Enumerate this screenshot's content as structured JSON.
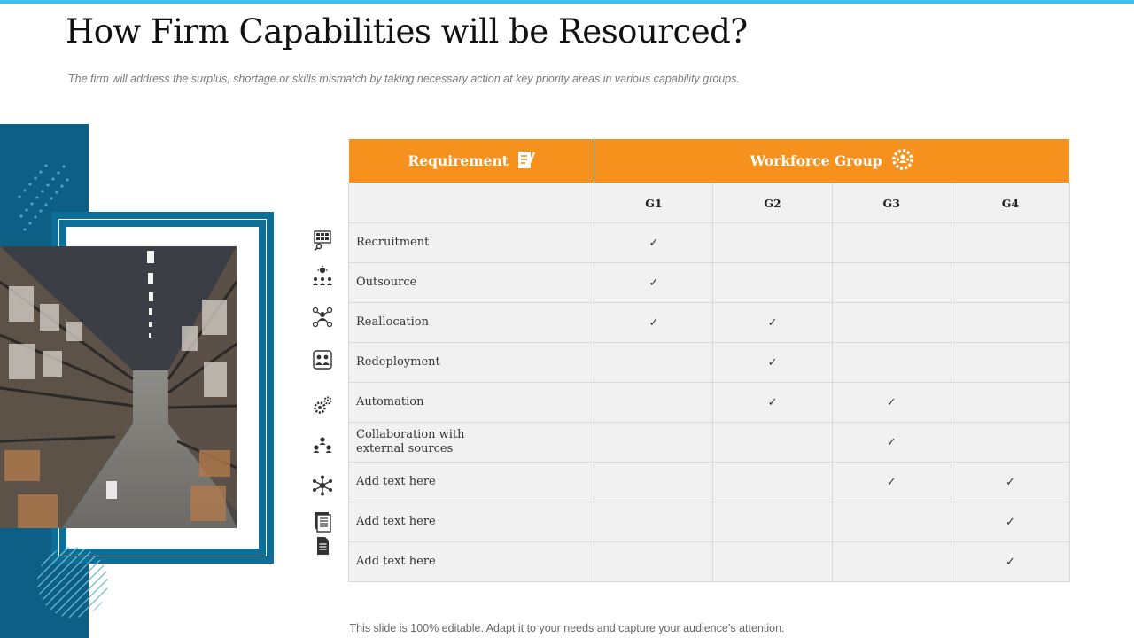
{
  "title": "How Firm Capabilities will be Resourced?",
  "subtitle": "The firm will address the surplus, shortage or skills mismatch by taking necessary action at key priority areas in various capability groups.",
  "footer": "This slide is 100% editable. Adapt it to your needs and capture your audience’s attention.",
  "colors": {
    "accent": "#f7911d",
    "top_bar": "#3cc0ef",
    "panel_blue": "#0d5f85",
    "row_bg": "#f1f1f1"
  },
  "table": {
    "header": {
      "requirement": "Requirement",
      "requirement_icon": "checklist-icon",
      "workforce_group": "Workforce Group",
      "workforce_icon": "team-gear-icon"
    },
    "groups": [
      "G1",
      "G2",
      "G3",
      "G4"
    ],
    "check_mark": "✓",
    "rows": [
      {
        "label": "Recruitment",
        "icon": "recruitment-icon",
        "checks": [
          true,
          false,
          false,
          false
        ]
      },
      {
        "label": "Outsource",
        "icon": "outsource-icon",
        "checks": [
          true,
          false,
          false,
          false
        ]
      },
      {
        "label": "Reallocation",
        "icon": "reallocation-icon",
        "checks": [
          true,
          true,
          false,
          false
        ]
      },
      {
        "label": "Redeployment",
        "icon": "redeployment-icon",
        "checks": [
          false,
          true,
          false,
          false
        ]
      },
      {
        "label": "Automation",
        "icon": "gears-icon",
        "checks": [
          false,
          true,
          true,
          false
        ]
      },
      {
        "label": "Collaboration with\nexternal sources",
        "icon": "collaboration-icon",
        "checks": [
          false,
          false,
          true,
          false
        ]
      },
      {
        "label": "Add text here",
        "icon": "network-icon",
        "checks": [
          false,
          false,
          true,
          true
        ]
      },
      {
        "label": "Add text here",
        "icon": "documents-icon",
        "checks": [
          false,
          false,
          false,
          true
        ]
      },
      {
        "label": "Add text here",
        "icon": "file-icon",
        "checks": [
          false,
          false,
          false,
          true
        ]
      }
    ]
  }
}
